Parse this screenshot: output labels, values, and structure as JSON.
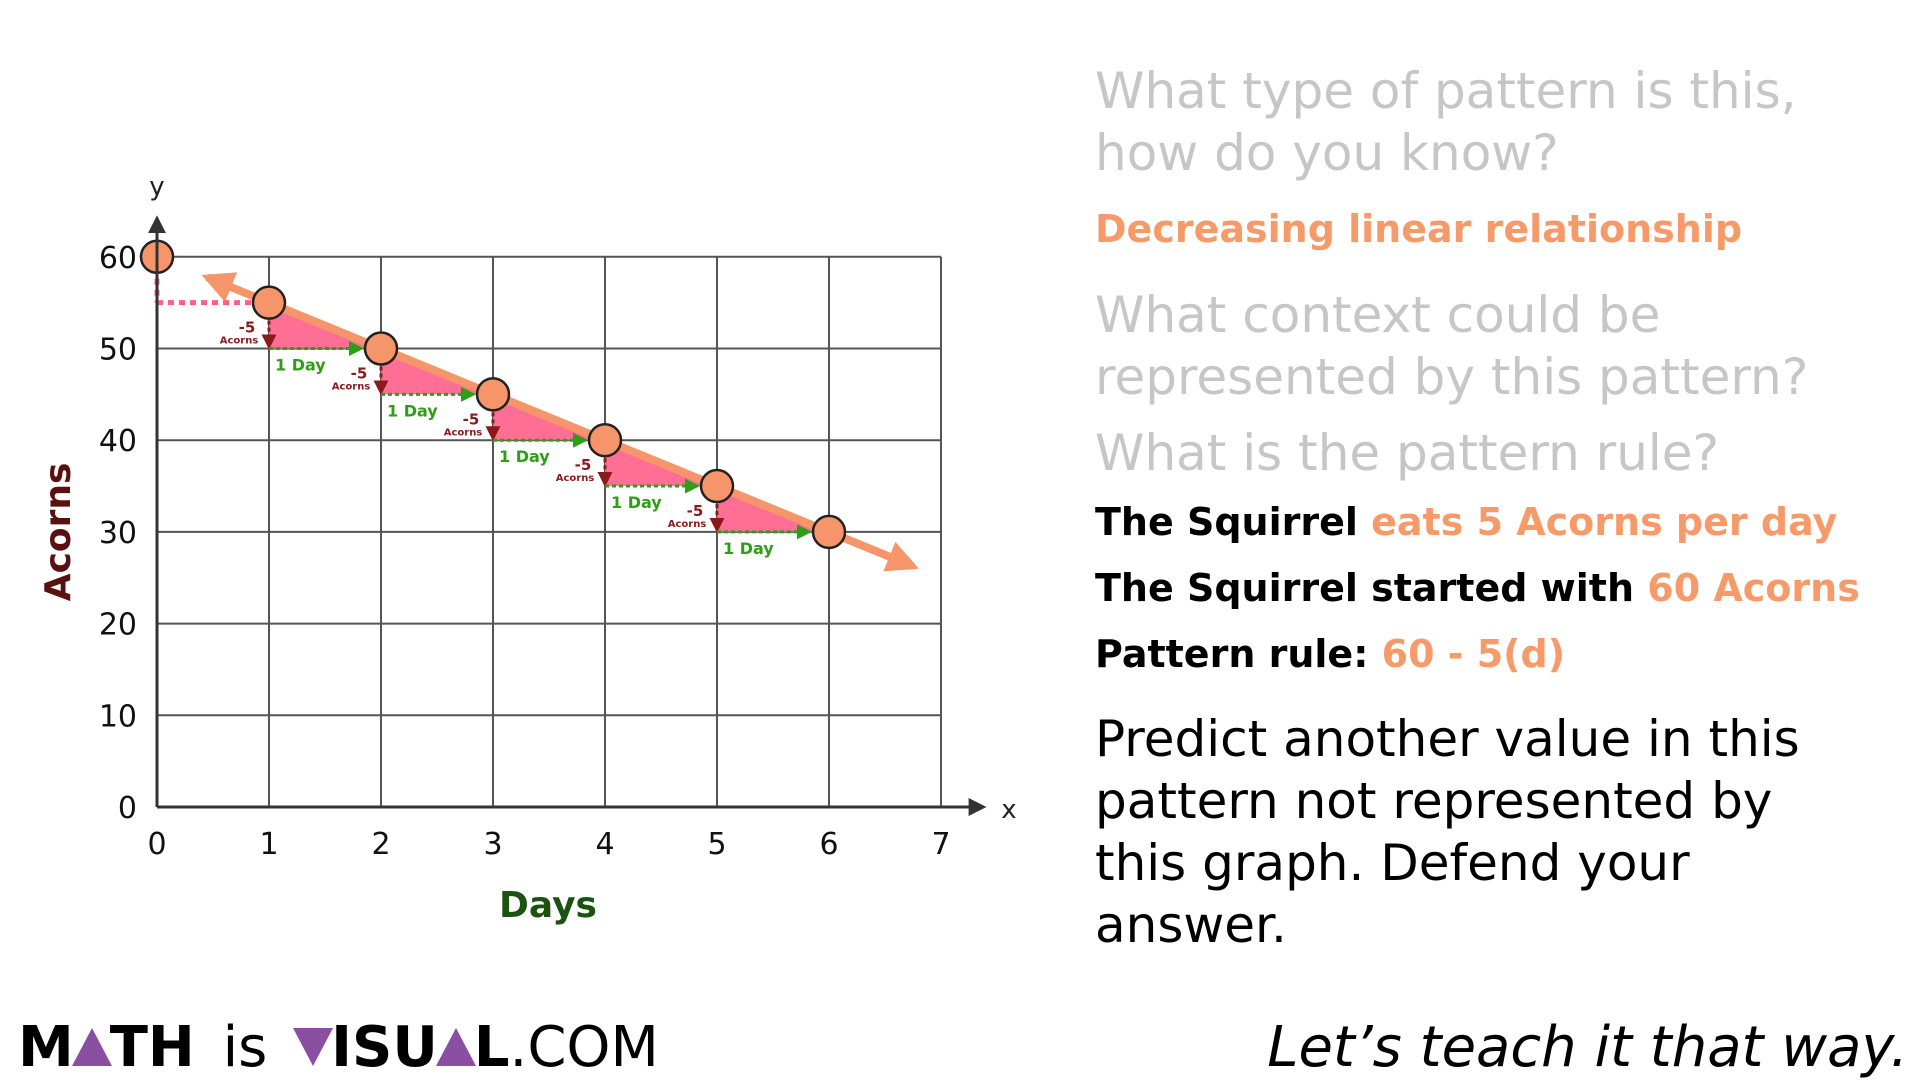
{
  "chart_data": {
    "type": "scatter",
    "xlabel": "Days",
    "ylabel": "Acorns",
    "x_axis_letter": "x",
    "y_axis_letter": "y",
    "xlim": [
      0,
      7
    ],
    "ylim": [
      0,
      60
    ],
    "x_ticks": [
      "0",
      "1",
      "2",
      "3",
      "4",
      "5",
      "6",
      "7"
    ],
    "y_ticks": [
      "0",
      "10",
      "20",
      "30",
      "40",
      "50",
      "60"
    ],
    "grid": true,
    "trend_line": "decreasing",
    "points": [
      {
        "x": 0,
        "y": 60
      },
      {
        "x": 1,
        "y": 55
      },
      {
        "x": 2,
        "y": 50
      },
      {
        "x": 3,
        "y": 45
      },
      {
        "x": 4,
        "y": 40
      },
      {
        "x": 5,
        "y": 35
      },
      {
        "x": 6,
        "y": 30
      }
    ],
    "step_labels": {
      "change": "-5",
      "change_unit": "Acorns",
      "run": "1 Day"
    },
    "colors": {
      "point": "#f7956a",
      "trend": "#f7956a",
      "triangle": "#ff5f8a",
      "run": "#2e9e16",
      "rise": "#8b1a1a",
      "ylabel": "#5a1010",
      "xlabel": "#1a5210"
    }
  },
  "questions": {
    "q1": "What type of pattern is this, how do you know?",
    "a1": "Decreasing linear relationship",
    "q2": "What context could be represented by this pattern?",
    "q3": "What is the pattern rule?",
    "line1_black": "The Squirrel",
    "line1_orange": "eats 5 Acorns per day",
    "line2_black": "The Squirrel started with",
    "line2_orange": "60 Acorns",
    "line3_black": "Pattern rule:",
    "line3_orange": "60 - 5(d)",
    "predict": "Predict another value in this pattern not represented by this graph. Defend your answer."
  },
  "footer": {
    "brand_m": "M",
    "brand_th": "TH",
    "brand_is": "is",
    "brand_sua": "SU",
    "brand_l": "L",
    "brand_com": ".COM",
    "tagline": "Let’s teach it that way."
  }
}
